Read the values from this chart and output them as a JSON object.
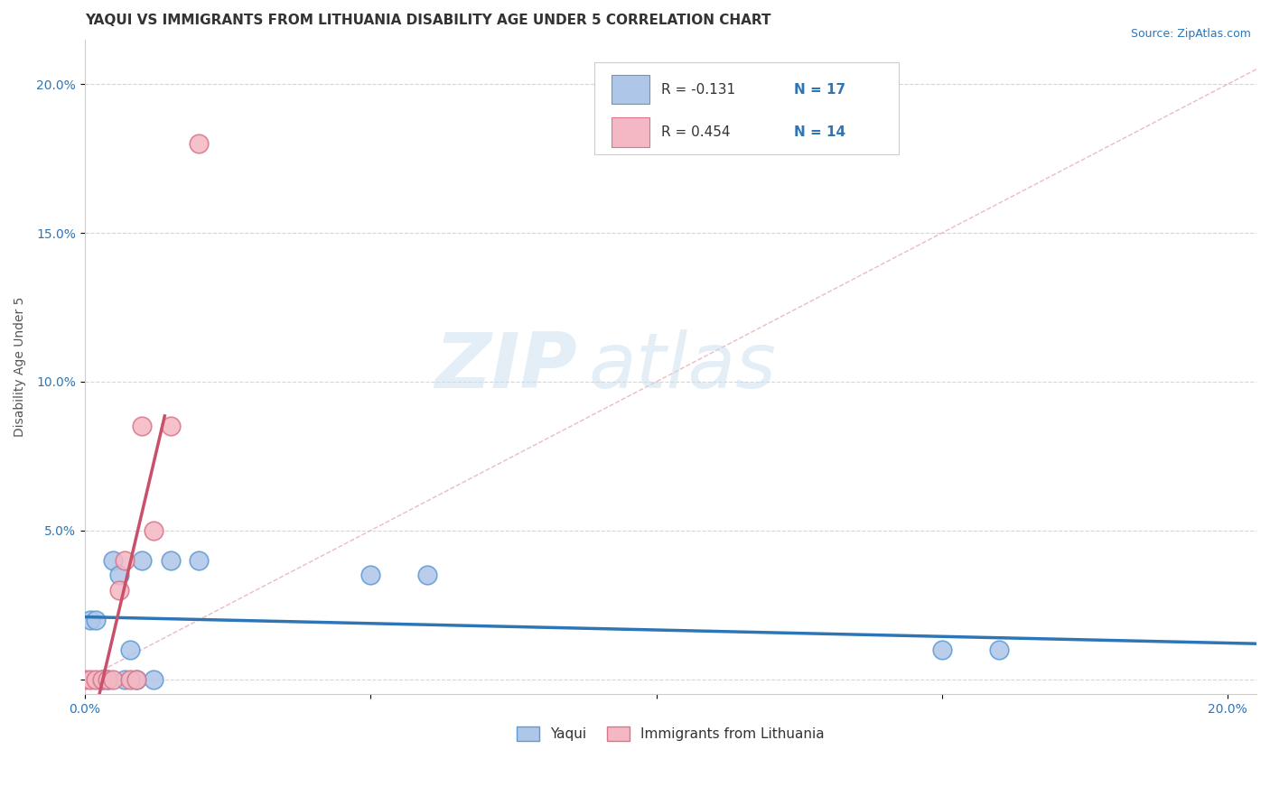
{
  "title": "YAQUI VS IMMIGRANTS FROM LITHUANIA DISABILITY AGE UNDER 5 CORRELATION CHART",
  "source": "Source: ZipAtlas.com",
  "ylabel": "Disability Age Under 5",
  "xlim": [
    0.0,
    0.205
  ],
  "ylim": [
    -0.005,
    0.215
  ],
  "xticks": [
    0.0,
    0.05,
    0.1,
    0.15,
    0.2
  ],
  "yticks": [
    0.0,
    0.05,
    0.1,
    0.15,
    0.2
  ],
  "xticklabels": [
    "0.0%",
    "",
    "",
    "",
    "20.0%"
  ],
  "yticklabels": [
    "",
    "5.0%",
    "10.0%",
    "15.0%",
    "20.0%"
  ],
  "yaqui_x": [
    0.001,
    0.002,
    0.003,
    0.004,
    0.005,
    0.006,
    0.007,
    0.008,
    0.009,
    0.01,
    0.012,
    0.015,
    0.02,
    0.05,
    0.06,
    0.15,
    0.16
  ],
  "yaqui_y": [
    0.02,
    0.02,
    0.0,
    0.0,
    0.04,
    0.035,
    0.0,
    0.01,
    0.0,
    0.04,
    0.0,
    0.04,
    0.04,
    0.035,
    0.035,
    0.01,
    0.01
  ],
  "lithuania_x": [
    0.0,
    0.001,
    0.002,
    0.003,
    0.004,
    0.005,
    0.006,
    0.007,
    0.008,
    0.009,
    0.01,
    0.012,
    0.015,
    0.02
  ],
  "lithuania_y": [
    0.0,
    0.0,
    0.0,
    0.0,
    0.0,
    0.0,
    0.03,
    0.04,
    0.0,
    0.0,
    0.085,
    0.05,
    0.085,
    0.18
  ],
  "yaqui_color": "#aec6e8",
  "yaqui_edge": "#5b9bd5",
  "lithuania_color": "#f4b8c4",
  "lithuania_edge": "#d9748a",
  "trend_yaqui_color": "#2e75b6",
  "trend_lithuania_color": "#c9506a",
  "diagonal_color": "#e8b4c0",
  "R_yaqui": -0.131,
  "N_yaqui": 17,
  "R_lithuania": 0.454,
  "N_lithuania": 14,
  "legend_r_color": "#2e75b6",
  "watermark_zip": "ZIP",
  "watermark_atlas": "atlas",
  "background_color": "#ffffff",
  "title_fontsize": 11,
  "label_fontsize": 10,
  "tick_fontsize": 10,
  "source_fontsize": 9
}
